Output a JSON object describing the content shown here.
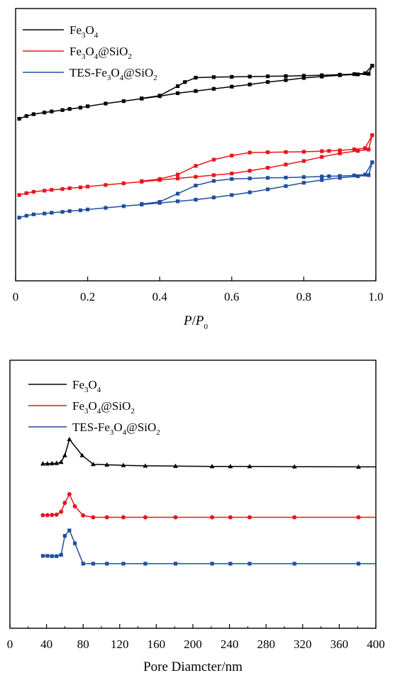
{
  "colors": {
    "black": "#000000",
    "red": "#e8141c",
    "blue": "#1f4fa0"
  },
  "chart_data": [
    {
      "type": "line",
      "title": "",
      "xlabel": {
        "p": "P",
        "slash": "/",
        "p0": "P",
        "sub0": "0"
      },
      "ylabel": "",
      "xlim": [
        0,
        1.0
      ],
      "ylim": [
        0,
        1.0
      ],
      "xticks": [
        "0",
        "0.2",
        "0.4",
        "0.6",
        "0.8",
        "1.0"
      ],
      "tick_values": [
        0,
        0.2,
        0.4,
        0.6,
        0.8,
        1.0
      ],
      "legend_position": "top-left",
      "series": [
        {
          "name": {
            "parts": [
              "Fe",
              "3",
              "O",
              "4",
              "",
              ""
            ]
          },
          "color": "#000000",
          "marker": "square",
          "adsorption": [
            [
              0.01,
              0.595
            ],
            [
              0.03,
              0.605
            ],
            [
              0.05,
              0.612
            ],
            [
              0.08,
              0.618
            ],
            [
              0.1,
              0.622
            ],
            [
              0.13,
              0.627
            ],
            [
              0.15,
              0.631
            ],
            [
              0.18,
              0.636
            ],
            [
              0.2,
              0.641
            ],
            [
              0.25,
              0.651
            ],
            [
              0.3,
              0.66
            ],
            [
              0.35,
              0.669
            ],
            [
              0.4,
              0.678
            ],
            [
              0.45,
              0.689
            ],
            [
              0.5,
              0.697
            ],
            [
              0.55,
              0.705
            ],
            [
              0.6,
              0.713
            ],
            [
              0.65,
              0.721
            ],
            [
              0.7,
              0.73
            ],
            [
              0.75,
              0.737
            ],
            [
              0.8,
              0.745
            ],
            [
              0.85,
              0.75
            ],
            [
              0.9,
              0.755
            ],
            [
              0.95,
              0.758
            ],
            [
              0.98,
              0.76
            ],
            [
              0.99,
              0.79
            ]
          ],
          "desorption": [
            [
              0.99,
              0.79
            ],
            [
              0.97,
              0.762
            ],
            [
              0.94,
              0.759
            ],
            [
              0.9,
              0.757
            ],
            [
              0.85,
              0.755
            ],
            [
              0.8,
              0.753
            ],
            [
              0.75,
              0.752
            ],
            [
              0.7,
              0.751
            ],
            [
              0.65,
              0.75
            ],
            [
              0.6,
              0.749
            ],
            [
              0.55,
              0.748
            ],
            [
              0.5,
              0.746
            ],
            [
              0.47,
              0.73
            ],
            [
              0.45,
              0.715
            ],
            [
              0.4,
              0.68
            ],
            [
              0.35,
              0.67
            ]
          ]
        },
        {
          "name": {
            "parts": [
              "Fe",
              "3",
              "O",
              "4",
              "@SiO",
              "2"
            ]
          },
          "color": "#e8141c",
          "marker": "square",
          "adsorption": [
            [
              0.01,
              0.315
            ],
            [
              0.03,
              0.322
            ],
            [
              0.05,
              0.327
            ],
            [
              0.08,
              0.331
            ],
            [
              0.1,
              0.334
            ],
            [
              0.13,
              0.337
            ],
            [
              0.15,
              0.34
            ],
            [
              0.18,
              0.343
            ],
            [
              0.2,
              0.346
            ],
            [
              0.25,
              0.352
            ],
            [
              0.3,
              0.358
            ],
            [
              0.35,
              0.364
            ],
            [
              0.4,
              0.37
            ],
            [
              0.45,
              0.376
            ],
            [
              0.5,
              0.382
            ],
            [
              0.55,
              0.388
            ],
            [
              0.6,
              0.394
            ],
            [
              0.65,
              0.404
            ],
            [
              0.7,
              0.415
            ],
            [
              0.75,
              0.427
            ],
            [
              0.8,
              0.44
            ],
            [
              0.85,
              0.455
            ],
            [
              0.9,
              0.468
            ],
            [
              0.95,
              0.477
            ],
            [
              0.98,
              0.482
            ],
            [
              0.99,
              0.535
            ]
          ],
          "desorption": [
            [
              0.99,
              0.535
            ],
            [
              0.97,
              0.487
            ],
            [
              0.94,
              0.483
            ],
            [
              0.9,
              0.479
            ],
            [
              0.87,
              0.477
            ],
            [
              0.85,
              0.476
            ],
            [
              0.8,
              0.474
            ],
            [
              0.75,
              0.473
            ],
            [
              0.7,
              0.472
            ],
            [
              0.65,
              0.471
            ],
            [
              0.6,
              0.46
            ],
            [
              0.55,
              0.445
            ],
            [
              0.5,
              0.422
            ],
            [
              0.45,
              0.39
            ],
            [
              0.4,
              0.374
            ],
            [
              0.35,
              0.366
            ]
          ]
        },
        {
          "name": {
            "parts": [
              "TES-Fe",
              "3",
              "O",
              "4",
              "@SiO",
              "2"
            ]
          },
          "color": "#1f4fa0",
          "marker": "square",
          "adsorption": [
            [
              0.01,
              0.232
            ],
            [
              0.03,
              0.239
            ],
            [
              0.05,
              0.244
            ],
            [
              0.08,
              0.247
            ],
            [
              0.1,
              0.25
            ],
            [
              0.13,
              0.253
            ],
            [
              0.15,
              0.256
            ],
            [
              0.18,
              0.259
            ],
            [
              0.2,
              0.262
            ],
            [
              0.25,
              0.268
            ],
            [
              0.3,
              0.274
            ],
            [
              0.35,
              0.28
            ],
            [
              0.4,
              0.286
            ],
            [
              0.45,
              0.292
            ],
            [
              0.5,
              0.298
            ],
            [
              0.55,
              0.306
            ],
            [
              0.6,
              0.315
            ],
            [
              0.65,
              0.325
            ],
            [
              0.7,
              0.336
            ],
            [
              0.75,
              0.348
            ],
            [
              0.8,
              0.36
            ],
            [
              0.85,
              0.37
            ],
            [
              0.9,
              0.378
            ],
            [
              0.95,
              0.384
            ],
            [
              0.98,
              0.388
            ],
            [
              0.99,
              0.435
            ]
          ],
          "desorption": [
            [
              0.99,
              0.435
            ],
            [
              0.97,
              0.39
            ],
            [
              0.94,
              0.387
            ],
            [
              0.9,
              0.385
            ],
            [
              0.87,
              0.384
            ],
            [
              0.85,
              0.383
            ],
            [
              0.8,
              0.381
            ],
            [
              0.75,
              0.379
            ],
            [
              0.7,
              0.378
            ],
            [
              0.65,
              0.376
            ],
            [
              0.6,
              0.374
            ],
            [
              0.55,
              0.367
            ],
            [
              0.5,
              0.35
            ],
            [
              0.45,
              0.32
            ],
            [
              0.4,
              0.29
            ],
            [
              0.35,
              0.282
            ]
          ]
        }
      ]
    },
    {
      "type": "line",
      "title": "",
      "xlabel": "Pore Diamcter/nm",
      "ylabel": "",
      "xlim": [
        0,
        400
      ],
      "ylim": [
        0,
        1.0
      ],
      "xticks": [
        "0",
        "40",
        "80",
        "120",
        "160",
        "200",
        "240",
        "280",
        "320",
        "360",
        "400"
      ],
      "tick_values": [
        0,
        40,
        80,
        120,
        160,
        200,
        240,
        280,
        320,
        360,
        400
      ],
      "legend_position": "top-left",
      "series": [
        {
          "name": {
            "parts": [
              "Fe",
              "3",
              "O",
              "4",
              "",
              ""
            ]
          },
          "color": "#000000",
          "marker": "triangle",
          "x": [
            36,
            41,
            46,
            51,
            56,
            60,
            65,
            79,
            91,
            106,
            124,
            148,
            181,
            221,
            241,
            262,
            311,
            381,
            400
          ],
          "y": [
            0.614,
            0.614,
            0.615,
            0.616,
            0.62,
            0.645,
            0.705,
            0.645,
            0.612,
            0.61,
            0.608,
            0.606,
            0.605,
            0.604,
            0.604,
            0.604,
            0.603,
            0.602,
            0.602
          ],
          "markers": [
            true,
            true,
            true,
            true,
            true,
            true,
            true,
            true,
            true,
            true,
            true,
            true,
            true,
            true,
            true,
            true,
            true,
            true,
            false
          ]
        },
        {
          "name": {
            "parts": [
              "Fe",
              "3",
              "O",
              "4",
              "@SiO",
              "2"
            ]
          },
          "color": "#e8141c",
          "marker": "circle",
          "x": [
            36,
            41,
            46,
            51,
            56,
            60,
            65,
            71,
            80,
            91,
            106,
            124,
            148,
            181,
            221,
            241,
            262,
            311,
            381,
            400
          ],
          "y": [
            0.422,
            0.422,
            0.423,
            0.424,
            0.435,
            0.468,
            0.5,
            0.455,
            0.421,
            0.414,
            0.414,
            0.414,
            0.414,
            0.414,
            0.414,
            0.414,
            0.414,
            0.414,
            0.414,
            0.414
          ],
          "markers": [
            true,
            true,
            true,
            true,
            true,
            true,
            true,
            true,
            true,
            true,
            true,
            true,
            true,
            true,
            true,
            true,
            true,
            true,
            true,
            false
          ]
        },
        {
          "name": {
            "parts": [
              "TES-Fe",
              "3",
              "O",
              "4",
              "@SiO",
              "2"
            ]
          },
          "color": "#1f4fa0",
          "marker": "square",
          "x": [
            36,
            41,
            46,
            51,
            56,
            60,
            65,
            71,
            80,
            91,
            106,
            124,
            148,
            181,
            221,
            241,
            262,
            311,
            381,
            400
          ],
          "y": [
            0.27,
            0.27,
            0.269,
            0.269,
            0.274,
            0.345,
            0.365,
            0.317,
            0.241,
            0.241,
            0.241,
            0.241,
            0.241,
            0.241,
            0.241,
            0.241,
            0.241,
            0.241,
            0.241,
            0.241
          ],
          "markers": [
            true,
            true,
            true,
            true,
            true,
            true,
            true,
            true,
            true,
            true,
            true,
            true,
            true,
            true,
            true,
            true,
            true,
            true,
            true,
            false
          ]
        }
      ]
    }
  ]
}
